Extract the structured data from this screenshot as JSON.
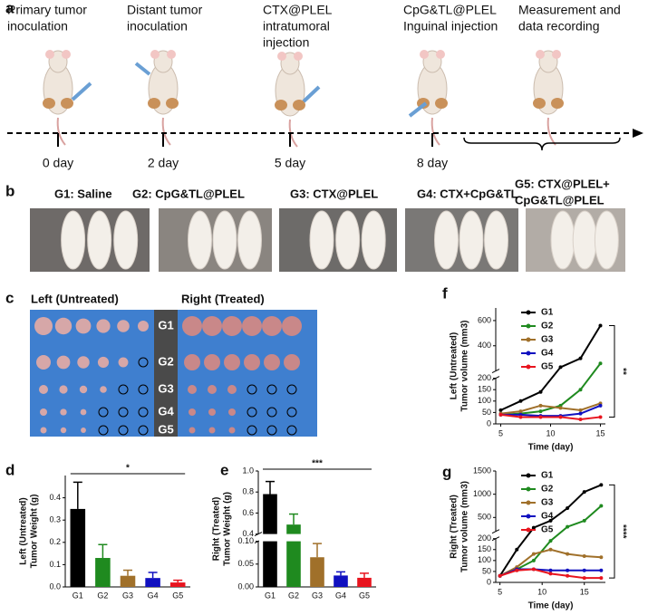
{
  "panel_labels": [
    "a",
    "b",
    "c",
    "d",
    "e",
    "f",
    "g"
  ],
  "timeline": {
    "steps": [
      [
        "Primary tumor",
        "inoculation"
      ],
      [
        "Distant tumor",
        "inoculation"
      ],
      [
        "CTX@PLEL",
        "intratumoral",
        "injection"
      ],
      [
        "CpG&TL@PLEL",
        "Inguinal injection"
      ],
      [
        "Measurement and",
        "data recording"
      ]
    ],
    "days": [
      "0 day",
      "2 day",
      "5 day",
      "8 day"
    ]
  },
  "photos": {
    "groups": [
      [
        "G1: Saline"
      ],
      [
        "G2: CpG&TL@PLEL"
      ],
      [
        "G3: CTX@PLEL"
      ],
      [
        "G4: CTX+CpG&TL"
      ],
      [
        "G5: CTX@PLEL+",
        "CpG&TL@PLEL"
      ]
    ],
    "left_label": "Left (Untreated)",
    "right_label": "Right (Treated)",
    "ruler_labels": [
      "G1",
      "G2",
      "G3",
      "G4",
      "G5"
    ]
  },
  "chart_data": [
    {
      "type": "bar",
      "categories": [
        "G1",
        "G2",
        "G3",
        "G4",
        "G5"
      ],
      "values": [
        0.35,
        0.13,
        0.05,
        0.04,
        0.02
      ],
      "errors": [
        0.12,
        0.06,
        0.025,
        0.025,
        0.01
      ],
      "colors": [
        "#000000",
        "#1f8a1f",
        "#a0702a",
        "#1010c0",
        "#e8141e"
      ],
      "ylabel": [
        "Left (Untreated)",
        "Tumor Weight (g)"
      ],
      "ylim": [
        0,
        0.5
      ],
      "yticks": [
        {
          "value": 0,
          "label": "0.0"
        },
        0.1,
        0.2,
        0.3,
        0.4
      ],
      "significance": "*"
    },
    {
      "type": "bar",
      "categories": [
        "G1",
        "G2",
        "G3",
        "G4",
        "G5"
      ],
      "values": [
        0.78,
        0.49,
        0.065,
        0.025,
        0.02
      ],
      "errors": [
        0.12,
        0.1,
        0.03,
        0.008,
        0.01
      ],
      "colors": [
        "#000000",
        "#1f8a1f",
        "#a0702a",
        "#1010c0",
        "#e8141e"
      ],
      "ylabel": [
        "Right (Treated)",
        "Tumor Weight (g)"
      ],
      "ylim": [
        0,
        1.0
      ],
      "ybreak": [
        0.1,
        0.4
      ],
      "yticks": [
        {
          "value": 0,
          "label": "0.00"
        },
        {
          "value": 0.05,
          "label": "0.05"
        },
        {
          "value": 0.1,
          "label": "0.10"
        },
        0.4,
        0.6,
        0.8,
        {
          "value": 1,
          "label": "1.0"
        }
      ],
      "significance": "***"
    },
    {
      "type": "line",
      "x": [
        5,
        7,
        9,
        11,
        13,
        15
      ],
      "xlim": [
        4.5,
        15.5
      ],
      "xticks": [
        5,
        10,
        15
      ],
      "ylim": [
        0,
        700
      ],
      "ybreak": [
        200,
        200
      ],
      "yticks": [
        0,
        50,
        100,
        150,
        200,
        400,
        600
      ],
      "ylabel": [
        "Left (Untreated)",
        "Tumor volume (mm3)"
      ],
      "xlabel": "Time (day)",
      "legend": "upper left",
      "significance": "**",
      "series": [
        {
          "name": "G1",
          "color": "#000000",
          "values": [
            60,
            100,
            140,
            230,
            300,
            560
          ]
        },
        {
          "name": "G2",
          "color": "#1f8a1f",
          "values": [
            40,
            45,
            55,
            80,
            150,
            260
          ]
        },
        {
          "name": "G3",
          "color": "#a0702a",
          "values": [
            45,
            55,
            80,
            70,
            60,
            90
          ]
        },
        {
          "name": "G4",
          "color": "#1010c0",
          "values": [
            40,
            40,
            35,
            35,
            45,
            80
          ]
        },
        {
          "name": "G5",
          "color": "#e8141e",
          "values": [
            40,
            30,
            30,
            30,
            20,
            30
          ]
        }
      ]
    },
    {
      "type": "line",
      "x": [
        5,
        7,
        9,
        11,
        13,
        15,
        17
      ],
      "xlim": [
        4.5,
        17.5
      ],
      "xticks": [
        5,
        10,
        15
      ],
      "ylim": [
        0,
        1500
      ],
      "ybreak": [
        200,
        200
      ],
      "yticks": [
        0,
        50,
        100,
        150,
        200,
        500,
        1000,
        1500
      ],
      "ylabel": [
        "Right (Treated)",
        "Tumor volume (mm3)"
      ],
      "xlabel": "Time (day)",
      "legend": "upper left",
      "significance": "****",
      "series": [
        {
          "name": "G1",
          "color": "#000000",
          "values": [
            30,
            150,
            280,
            430,
            700,
            1050,
            1200
          ]
        },
        {
          "name": "G2",
          "color": "#1f8a1f",
          "values": [
            30,
            60,
            100,
            190,
            300,
            430,
            750
          ]
        },
        {
          "name": "G3",
          "color": "#a0702a",
          "values": [
            30,
            70,
            130,
            150,
            130,
            120,
            115
          ]
        },
        {
          "name": "G4",
          "color": "#1010c0",
          "values": [
            30,
            60,
            60,
            55,
            55,
            55,
            55
          ]
        },
        {
          "name": "G5",
          "color": "#e8141e",
          "values": [
            30,
            55,
            60,
            40,
            30,
            20,
            20
          ]
        }
      ]
    }
  ]
}
